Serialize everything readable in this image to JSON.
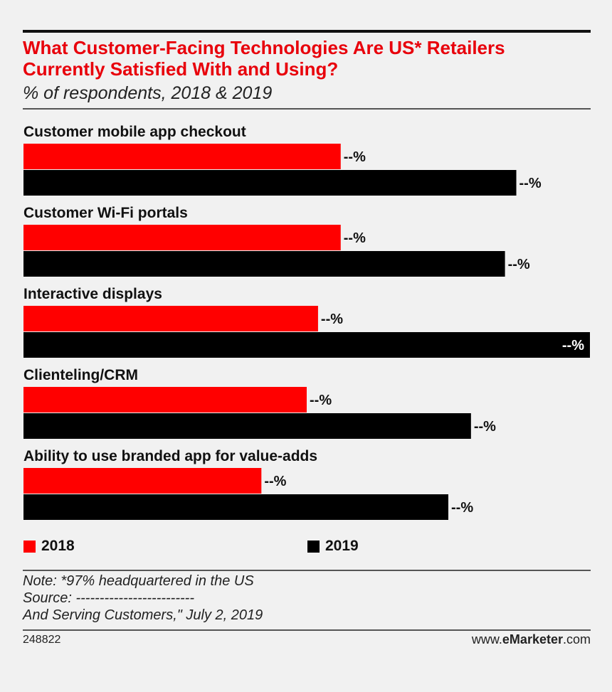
{
  "header": {
    "title": "What Customer-Facing Technologies Are US* Retailers Currently Satisfied With and Using?",
    "subtitle": "% of respondents, 2018 & 2019"
  },
  "colors": {
    "series_2018": "#ff0000",
    "series_2019": "#000000"
  },
  "chart_data": {
    "type": "bar",
    "orientation": "horizontal",
    "categories": [
      "Customer mobile app checkout",
      "Customer Wi-Fi portals",
      "Interactive displays",
      "Clienteling/CRM",
      "Ability to use branded app for value-adds"
    ],
    "series": [
      {
        "name": "2018",
        "values": [
          56,
          56,
          52,
          50,
          42
        ],
        "labels": [
          "--%",
          "--%",
          "--%",
          "--%",
          "--%"
        ]
      },
      {
        "name": "2019",
        "values": [
          87,
          85,
          100,
          79,
          75
        ],
        "labels": [
          "--%",
          "--%",
          "--%",
          "--%",
          "--%"
        ]
      }
    ],
    "xlim": [
      0,
      100
    ],
    "title": "What Customer-Facing Technologies Are US* Retailers Currently Satisfied With and Using?",
    "xlabel": "",
    "ylabel": ""
  },
  "legend": {
    "item_2018": "2018",
    "item_2019": "2019"
  },
  "footer": {
    "note": "Note: *97% headquartered in the US",
    "source": "Source: -------------------------",
    "source_cont": "And Serving Customers,\" July 2, 2019",
    "chart_id": "248822",
    "brand_prefix": "www.",
    "brand_name": "eMarketer",
    "brand_suffix": ".com"
  }
}
